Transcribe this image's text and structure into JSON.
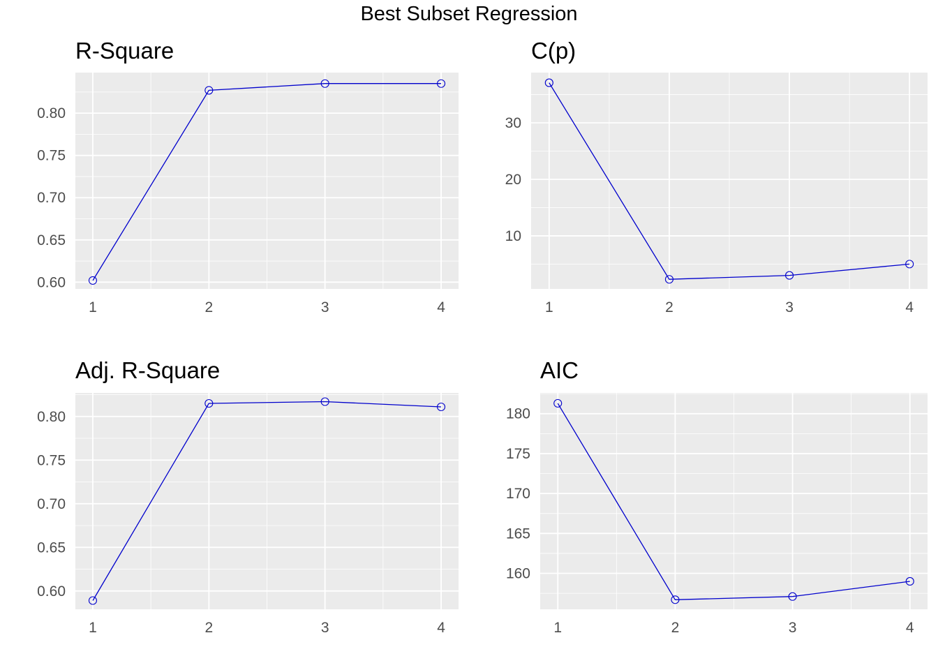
{
  "title": "Best Subset Regression",
  "colors": {
    "line": "#0000cc",
    "panel_bg": "#ebebeb",
    "grid": "#ffffff",
    "tick_text": "#4d4d4d"
  },
  "chart_data": [
    {
      "type": "line",
      "title": "R-Square",
      "xlabel": "",
      "ylabel": "",
      "x": [
        1,
        2,
        3,
        4
      ],
      "values": [
        0.602,
        0.827,
        0.835,
        0.835
      ],
      "xlim": [
        0.85,
        4.15
      ],
      "ylim": [
        0.592,
        0.848
      ],
      "yticks": [
        0.6,
        0.65,
        0.7,
        0.75,
        0.8
      ],
      "ytick_labels": [
        "0.60",
        "0.65",
        "0.70",
        "0.75",
        "0.80"
      ],
      "xticks": [
        1,
        2,
        3,
        4
      ],
      "xtick_labels": [
        "1",
        "2",
        "3",
        "4"
      ],
      "grid": true
    },
    {
      "type": "line",
      "title": "C(p)",
      "xlabel": "",
      "ylabel": "",
      "x": [
        1,
        2,
        3,
        4
      ],
      "values": [
        37.1,
        2.3,
        3.0,
        5.0
      ],
      "xlim": [
        0.85,
        4.15
      ],
      "ylim": [
        0.6,
        38.9
      ],
      "yticks": [
        10,
        20,
        30
      ],
      "ytick_labels": [
        "10",
        "20",
        "30"
      ],
      "xticks": [
        1,
        2,
        3,
        4
      ],
      "xtick_labels": [
        "1",
        "2",
        "3",
        "4"
      ],
      "grid": true
    },
    {
      "type": "line",
      "title": "Adj. R-Square",
      "xlabel": "",
      "ylabel": "",
      "x": [
        1,
        2,
        3,
        4
      ],
      "values": [
        0.589,
        0.815,
        0.817,
        0.811
      ],
      "xlim": [
        0.85,
        4.15
      ],
      "ylim": [
        0.579,
        0.827
      ],
      "yticks": [
        0.6,
        0.65,
        0.7,
        0.75,
        0.8
      ],
      "ytick_labels": [
        "0.60",
        "0.65",
        "0.70",
        "0.75",
        "0.80"
      ],
      "xticks": [
        1,
        2,
        3,
        4
      ],
      "xtick_labels": [
        "1",
        "2",
        "3",
        "4"
      ],
      "grid": true
    },
    {
      "type": "line",
      "title": "AIC",
      "xlabel": "",
      "ylabel": "",
      "x": [
        1,
        2,
        3,
        4
      ],
      "values": [
        181.3,
        156.7,
        157.1,
        159.0
      ],
      "xlim": [
        0.85,
        4.15
      ],
      "ylim": [
        155.5,
        182.6
      ],
      "yticks": [
        160,
        165,
        170,
        175,
        180
      ],
      "ytick_labels": [
        "160",
        "165",
        "170",
        "175",
        "180"
      ],
      "xticks": [
        1,
        2,
        3,
        4
      ],
      "xtick_labels": [
        "1",
        "2",
        "3",
        "4"
      ],
      "grid": true
    }
  ]
}
